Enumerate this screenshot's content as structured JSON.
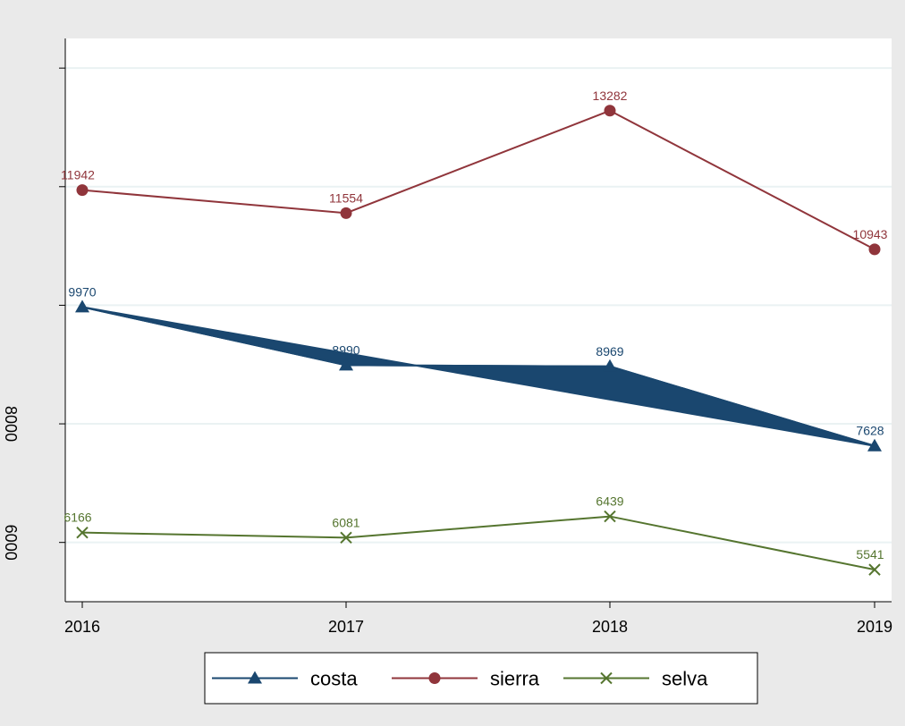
{
  "chart_data": {
    "type": "line",
    "title": "",
    "xlabel": "",
    "ylabel": "",
    "x": [
      2016,
      2017,
      2018,
      2019
    ],
    "xticks": [
      "2016",
      "2017",
      "2018",
      "2019"
    ],
    "ylim": [
      5000,
      14500
    ],
    "yticks": [
      6000,
      8000,
      10000,
      12000,
      14000
    ],
    "ytick_labels": [
      "6000",
      "8000",
      "",
      "",
      ""
    ],
    "grid": true,
    "legend_position": "bottom",
    "series": [
      {
        "name": "costa",
        "values": [
          9970,
          8990,
          8969,
          7628
        ],
        "color": "#1a476f",
        "marker": "triangle"
      },
      {
        "name": "sierra",
        "values": [
          11942,
          11554,
          13282,
          10943
        ],
        "color": "#90353b",
        "marker": "circle"
      },
      {
        "name": "selva",
        "values": [
          6166,
          6081,
          6439,
          5541
        ],
        "color": "#55752f",
        "marker": "x"
      }
    ]
  },
  "colors": {
    "outer_background": "#eaeaea",
    "plot_background": "#ffffff",
    "grid": "#eaf2f3"
  }
}
